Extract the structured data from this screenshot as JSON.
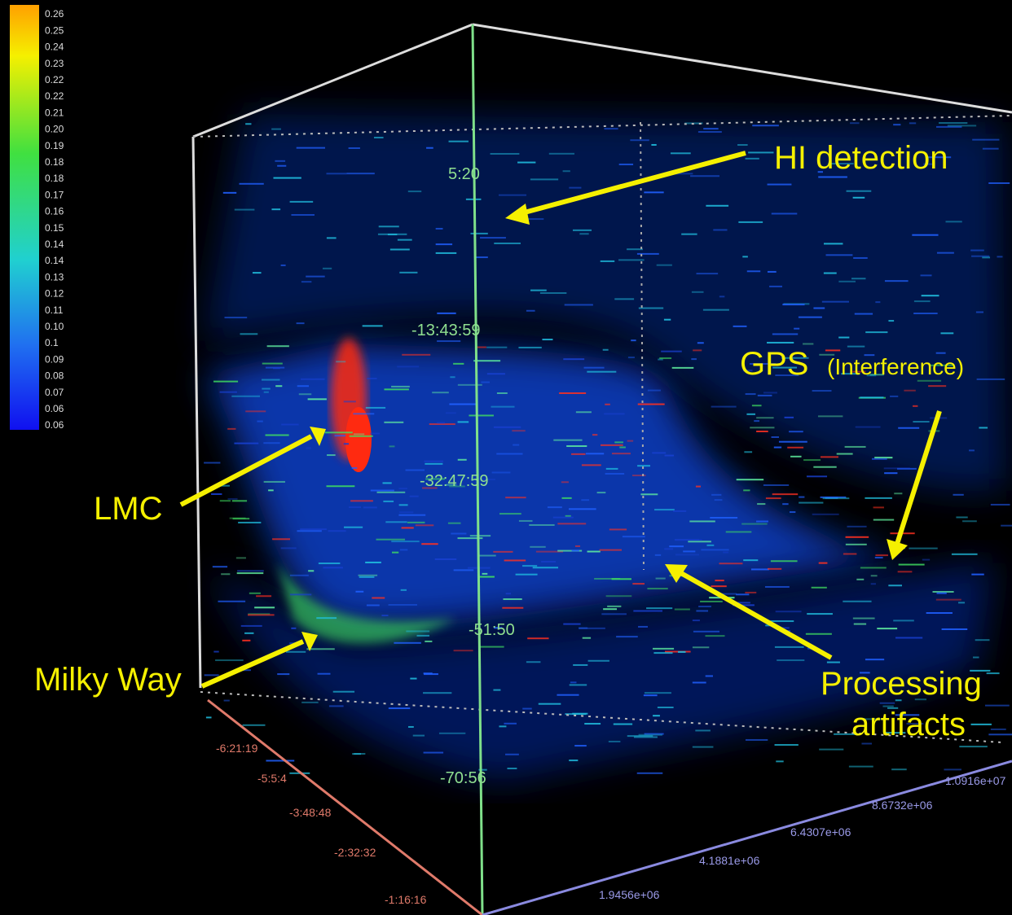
{
  "colorbar": {
    "labels": [
      "0.26",
      "0.25",
      "0.24",
      "0.23",
      "0.22",
      "0.22",
      "0.21",
      "0.20",
      "0.19",
      "0.18",
      "0.18",
      "0.17",
      "0.16",
      "0.15",
      "0.14",
      "0.14",
      "0.13",
      "0.12",
      "0.11",
      "0.10",
      "0.1",
      "0.09",
      "0.08",
      "0.07",
      "0.06",
      "0.06"
    ]
  },
  "vertical_axis": {
    "labels": [
      "5:20",
      "-13:43:59",
      "-32:47:59",
      "-51:50",
      "-70:56"
    ]
  },
  "red_axis": {
    "labels": [
      "-6:21:19",
      "-5:5:4",
      "-3:48:48",
      "-2:32:32",
      "-1:16:16"
    ]
  },
  "blue_axis": {
    "labels": [
      "1.9456e+06",
      "4.1881e+06",
      "6.4307e+06",
      "8.6732e+06",
      "1.0916e+07"
    ]
  },
  "annotations": {
    "hi": "HI detection",
    "gps": "GPS",
    "gps_note": "(Interference)",
    "lmc": "LMC",
    "milky_way": "Milky Way",
    "processing_1": "Processing",
    "processing_2": "artifacts"
  }
}
